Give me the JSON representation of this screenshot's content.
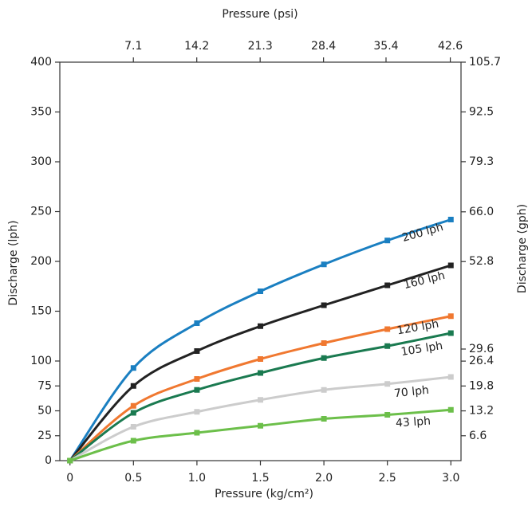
{
  "chart_data": {
    "type": "line",
    "xlabel": "Pressure (kg/cm²)",
    "ylabel": "Discharge (lph)",
    "y2label": "Discharge (gph)",
    "x2label": "Pressure (psi)",
    "x": [
      0,
      0.5,
      1,
      1.5,
      2,
      2.5,
      3
    ],
    "xlim": [
      -0.08,
      3.08
    ],
    "xticks": [
      0,
      0.5,
      {
        "value": 1,
        "label": "1.0"
      },
      1.5,
      {
        "value": 2,
        "label": "2.0"
      },
      2.5,
      {
        "value": 3,
        "label": "3.0"
      }
    ],
    "x2lim": [
      -1.14,
      43.8
    ],
    "x2ticks": [
      7.1,
      14.2,
      21.3,
      28.4,
      35.4,
      42.6
    ],
    "ylim": [
      0,
      400
    ],
    "yticks": [
      0,
      25,
      50,
      75,
      100,
      150,
      200,
      250,
      300,
      350,
      400
    ],
    "y2lim": [
      0,
      105.7
    ],
    "y2ticks": [
      6.6,
      13.2,
      19.8,
      26.4,
      29.6,
      52.8,
      {
        "value": 66,
        "label": "66.0"
      },
      79.3,
      92.5,
      105.7
    ],
    "series": [
      {
        "name": "200 lph",
        "color": "#1a7fc1",
        "values": [
          0,
          93,
          138,
          170,
          197,
          221,
          242
        ]
      },
      {
        "name": "160 lph",
        "color": "#222222",
        "values": [
          0,
          75,
          110,
          135,
          156,
          176,
          196
        ]
      },
      {
        "name": "120 lph",
        "color": "#f07830",
        "values": [
          0,
          55,
          82,
          102,
          118,
          132,
          145
        ]
      },
      {
        "name": "105 lph",
        "color": "#1a7a50",
        "values": [
          0,
          48,
          71,
          88,
          103,
          115,
          128
        ]
      },
      {
        "name": "70 lph",
        "color": "#cccccc",
        "values": [
          0,
          34,
          49,
          61,
          71,
          77,
          84
        ]
      },
      {
        "name": "43 lph",
        "color": "#6cbf4a",
        "values": [
          0,
          20,
          28,
          35,
          42,
          46,
          51
        ]
      }
    ]
  }
}
